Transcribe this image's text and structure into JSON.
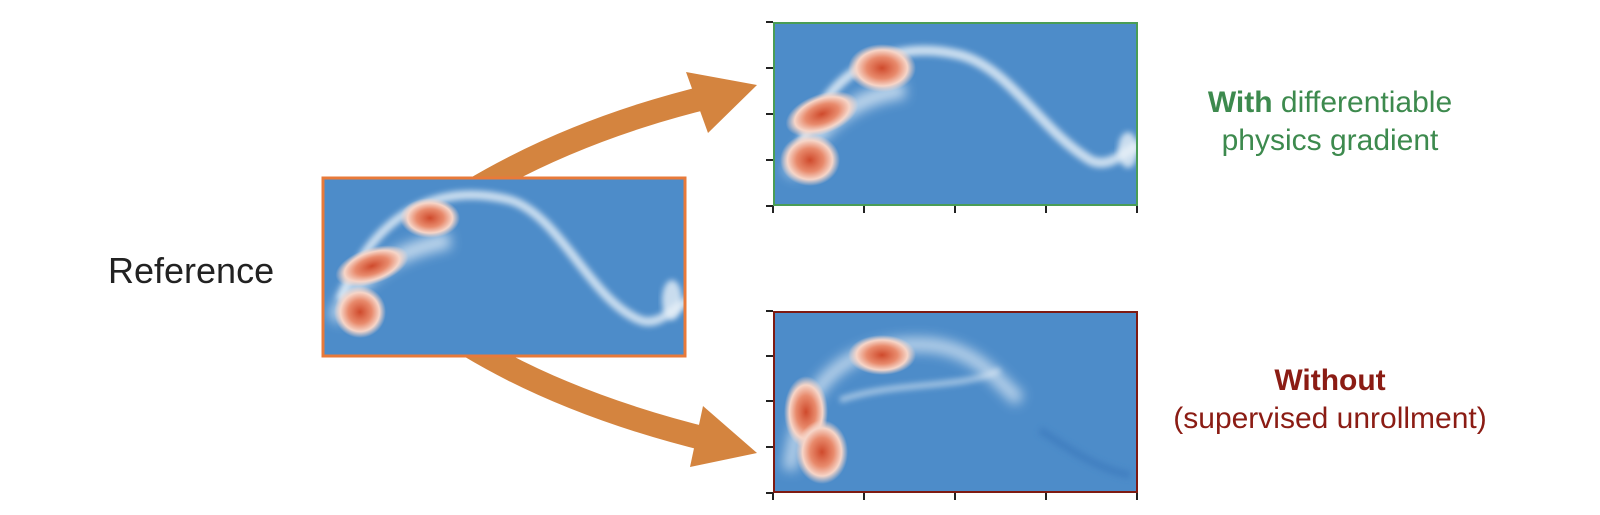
{
  "reference": {
    "label": "Reference",
    "border_color": "#e87a3a"
  },
  "with": {
    "bold": "With",
    "rest": " differentiable",
    "line2": "physics gradient",
    "color": "#3d8a4e"
  },
  "without": {
    "bold": "Without",
    "line2": "(supervised unrollment)",
    "color": "#8b1c14"
  },
  "colors": {
    "arrow": "#d4843f",
    "field_bg": "#4d8cc9",
    "vortex_hot": "#d9583a",
    "vortex_warm": "#f2b9a4",
    "wisp": "#e8f1f8"
  }
}
